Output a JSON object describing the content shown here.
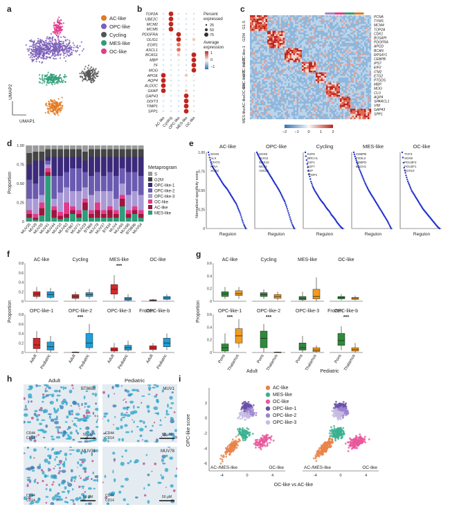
{
  "colors": {
    "ac": "#e07a23",
    "opc": "#7b5fb8",
    "cycling": "#555555",
    "mes": "#2e9e7a",
    "oc": "#e23a8b",
    "opc1": "#6a4fa8",
    "opc2": "#9c86cf",
    "opc3": "#c7bce3",
    "g2m": "#444444",
    "s": "#9a9a9a",
    "red": "#d62728",
    "blue": "#1f9fd6",
    "orange": "#f29b1d",
    "green": "#2e8b3a",
    "regulon": "#2233cc"
  },
  "panel_labels": [
    "a",
    "b",
    "c",
    "d",
    "e",
    "f",
    "g",
    "h",
    "i"
  ],
  "panel_a": {
    "legend": [
      {
        "label": "AC-like",
        "color": "#e07a23"
      },
      {
        "label": "OPC-like",
        "color": "#7b5fb8"
      },
      {
        "label": "Cycling",
        "color": "#555555"
      },
      {
        "label": "MES-like",
        "color": "#2e9e7a"
      },
      {
        "label": "OC-like",
        "color": "#e23a8b"
      }
    ],
    "axis_x": "UMAP1",
    "axis_y": "UMAP2"
  },
  "panel_b": {
    "genes": [
      "TOP2A",
      "UBE2C",
      "MCM2",
      "MCM5",
      "PDGFRA",
      "OLIG1",
      "EGR1",
      "ASCL1",
      "BCAS1",
      "MBP",
      "TF",
      "MOG",
      "APOE",
      "AQP4",
      "ALDOC",
      "GFAP",
      "GAP43",
      "DDIT3",
      "TIMP1",
      "SPP1"
    ],
    "groups": [
      "AC-like",
      "Cycling",
      "OPC-like",
      "MES-like",
      "OC-like"
    ],
    "legend_pct_title": "Percent expressed",
    "legend_pct": [
      "25",
      "50",
      "75"
    ],
    "legend_expr_title": "Average expression",
    "legend_expr": [
      "1",
      "0",
      "−1"
    ]
  },
  "panel_c": {
    "right_genes": [
      "PCNA",
      "TYMS",
      "MCM4",
      "TOP2A",
      "CDK1",
      "BUSAPI",
      "PDGFRA",
      "APOD",
      "BCAN",
      "RPS4Y1",
      "CEBPB",
      "IPS7",
      "EIF2",
      "ITM2",
      "ETG2",
      "PTGDS",
      "MBP",
      "MOG",
      "CLU",
      "AQP4",
      "SPARCL1",
      "VIM",
      "GAP43",
      "SPP1"
    ],
    "left_labels": [
      "G1.S",
      "G2M",
      "OPC-like-1",
      "OPC-like-2",
      "OPC-like-3",
      "OC-like",
      "AC-like",
      "MES-like"
    ],
    "colorbar": [
      "−2",
      "−1",
      "0",
      "1",
      "2"
    ]
  },
  "panel_d": {
    "ylabel": "Proportion",
    "yticks": [
      "0",
      "0.25",
      "0.50",
      "0.75",
      "1.00"
    ],
    "samples": [
      "MUV35",
      "MUV8",
      "MUV39",
      "MUV41",
      "MUV44",
      "MUV10",
      "MUV63",
      "BT867",
      "MUV71",
      "MUV29",
      "BT869",
      "MUV78",
      "MUV37",
      "BT834",
      "MUV4",
      "MUV65",
      "MUV86",
      "BT869b",
      "MUV54"
    ],
    "legend_title": "Metaprogram",
    "legend": [
      {
        "label": "S",
        "color": "#9a9a9a"
      },
      {
        "label": "G2M",
        "color": "#444444"
      },
      {
        "label": "OPC-like-1",
        "color": "#3b2a7a"
      },
      {
        "label": "OPC-like-2",
        "color": "#6a5ab0"
      },
      {
        "label": "OPC-like-3",
        "color": "#a99ad6"
      },
      {
        "label": "OC-like",
        "color": "#e23a8b"
      },
      {
        "label": "AC-like",
        "color": "#a0153e"
      },
      {
        "label": "MES-like",
        "color": "#2e9e7a"
      }
    ],
    "chart_data": {
      "type": "bar",
      "stacked": true,
      "series_order": [
        "MES-like",
        "AC-like",
        "OC-like",
        "OPC-like-3",
        "OPC-like-2",
        "OPC-like-1",
        "G2M",
        "S"
      ],
      "values": [
        [
          0.05,
          0.05,
          0.05,
          0.15,
          0.25,
          0.2,
          0.15,
          0.1
        ],
        [
          0.02,
          0.03,
          0.05,
          0.2,
          0.2,
          0.3,
          0.12,
          0.08
        ],
        [
          0.08,
          0.1,
          0.07,
          0.1,
          0.25,
          0.2,
          0.12,
          0.08
        ],
        [
          0.6,
          0.05,
          0.05,
          0.05,
          0.05,
          0.05,
          0.1,
          0.05
        ],
        [
          0.05,
          0.1,
          0.05,
          0.1,
          0.3,
          0.25,
          0.1,
          0.05
        ],
        [
          0.03,
          0.05,
          0.05,
          0.25,
          0.22,
          0.25,
          0.1,
          0.05
        ],
        [
          0.05,
          0.05,
          0.15,
          0.2,
          0.2,
          0.2,
          0.1,
          0.05
        ],
        [
          0.1,
          0.05,
          0.05,
          0.2,
          0.3,
          0.15,
          0.1,
          0.05
        ],
        [
          0.05,
          0.05,
          0.05,
          0.25,
          0.3,
          0.15,
          0.1,
          0.05
        ],
        [
          0.15,
          0.1,
          0.05,
          0.15,
          0.2,
          0.15,
          0.12,
          0.08
        ],
        [
          0.05,
          0.05,
          0.05,
          0.2,
          0.25,
          0.25,
          0.1,
          0.05
        ],
        [
          0.05,
          0.1,
          0.1,
          0.15,
          0.25,
          0.2,
          0.1,
          0.05
        ],
        [
          0.05,
          0.05,
          0.05,
          0.25,
          0.2,
          0.25,
          0.1,
          0.05
        ],
        [
          0.05,
          0.1,
          0.05,
          0.2,
          0.25,
          0.2,
          0.1,
          0.05
        ],
        [
          0.05,
          0.05,
          0.05,
          0.15,
          0.3,
          0.25,
          0.1,
          0.05
        ],
        [
          0.2,
          0.1,
          0.05,
          0.15,
          0.2,
          0.15,
          0.1,
          0.05
        ],
        [
          0.05,
          0.05,
          0.05,
          0.2,
          0.3,
          0.2,
          0.1,
          0.05
        ],
        [
          0.1,
          0.05,
          0.05,
          0.2,
          0.25,
          0.2,
          0.1,
          0.05
        ],
        [
          0.05,
          0.05,
          0.05,
          0.2,
          0.25,
          0.25,
          0.1,
          0.05
        ]
      ]
    }
  },
  "panel_e": {
    "ylabel": "Normalized specificity score",
    "xlabel": "Regulon",
    "subplots": [
      {
        "title": "AC-like",
        "labels": [
          "SOX9",
          "ALX",
          "STAT3",
          "NFIA",
          "SOX2"
        ]
      },
      {
        "title": "OPC-like",
        "labels": [
          "SOX8",
          "OLIG2",
          "SOX10",
          "NKX2",
          "ASCL1"
        ]
      },
      {
        "title": "Cycling",
        "labels": [
          "E2F8",
          "BRCA1",
          "E2F1",
          "E2F7",
          "E2F",
          "TFDP1"
        ]
      },
      {
        "title": "MES-like",
        "labels": [
          "CEBPB",
          "FOSL2",
          "CEBPD",
          "BACH1"
        ]
      },
      {
        "title": "OC-like",
        "labels": [
          "TCF3",
          "SOX8",
          "POU3F2",
          "POU2F1",
          "SOX10"
        ]
      }
    ],
    "chart_data": {
      "type": "scatter",
      "yrange": [
        0,
        1
      ],
      "curves": [
        {
          "title": "AC-like",
          "values": [
            1.0,
            0.9,
            0.82,
            0.78,
            0.74,
            0.7,
            0.66,
            0.62,
            0.58,
            0.55,
            0.52,
            0.48,
            0.44,
            0.4,
            0.36,
            0.32,
            0.26,
            0.2,
            0.12,
            0.05,
            0.0
          ]
        },
        {
          "title": "OPC-like",
          "values": [
            1.0,
            0.95,
            0.9,
            0.86,
            0.82,
            0.78,
            0.74,
            0.7,
            0.66,
            0.62,
            0.58,
            0.54,
            0.5,
            0.45,
            0.4,
            0.35,
            0.28,
            0.2,
            0.12,
            0.05,
            0.0
          ]
        },
        {
          "title": "Cycling",
          "values": [
            1.0,
            0.85,
            0.72,
            0.62,
            0.55,
            0.5,
            0.46,
            0.42,
            0.38,
            0.35,
            0.32,
            0.28,
            0.25,
            0.22,
            0.18,
            0.15,
            0.12,
            0.08,
            0.05,
            0.02,
            0.0
          ]
        },
        {
          "title": "MES-like",
          "values": [
            1.0,
            0.92,
            0.85,
            0.78,
            0.72,
            0.66,
            0.6,
            0.55,
            0.5,
            0.46,
            0.42,
            0.38,
            0.34,
            0.3,
            0.26,
            0.22,
            0.18,
            0.14,
            0.1,
            0.05,
            0.0
          ]
        },
        {
          "title": "OC-like",
          "values": [
            1.0,
            0.8,
            0.7,
            0.62,
            0.56,
            0.5,
            0.46,
            0.42,
            0.38,
            0.34,
            0.3,
            0.26,
            0.23,
            0.2,
            0.17,
            0.14,
            0.11,
            0.08,
            0.05,
            0.02,
            0.0
          ]
        }
      ]
    }
  },
  "panel_f": {
    "ylabel": "Proportion",
    "yticks": [
      "0",
      "0.2",
      "0.4",
      "0.6",
      "0.8"
    ],
    "xticks": [
      "Adult",
      "Pediatric"
    ],
    "facets": [
      {
        "title": "AC-like",
        "sig": "",
        "adult": [
          0.05,
          0.1,
          0.15,
          0.2,
          0.3
        ],
        "ped": [
          0.05,
          0.08,
          0.14,
          0.2,
          0.28
        ]
      },
      {
        "title": "Cycling",
        "sig": "",
        "adult": [
          0.02,
          0.06,
          0.1,
          0.14,
          0.2
        ],
        "ped": [
          0.05,
          0.1,
          0.14,
          0.18,
          0.26
        ]
      },
      {
        "title": "MES-like",
        "sig": "***",
        "adult": [
          0.05,
          0.15,
          0.25,
          0.35,
          0.55
        ],
        "ped": [
          0.0,
          0.02,
          0.05,
          0.08,
          0.15
        ]
      },
      {
        "title": "OC-like",
        "sig": "",
        "adult": [
          0.0,
          0.01,
          0.02,
          0.03,
          0.05
        ],
        "ped": [
          0.02,
          0.04,
          0.07,
          0.1,
          0.15
        ]
      },
      {
        "title": "OPC-like-1",
        "sig": "",
        "adult": [
          0.0,
          0.08,
          0.16,
          0.3,
          0.45
        ],
        "ped": [
          0.0,
          0.05,
          0.12,
          0.22,
          0.35
        ]
      },
      {
        "title": "OPC-like-2",
        "sig": "***",
        "adult": [
          0.0,
          0.0,
          0.0,
          0.01,
          0.02
        ],
        "ped": [
          0.05,
          0.1,
          0.2,
          0.4,
          0.6
        ]
      },
      {
        "title": "OPC-like-3",
        "sig": "",
        "adult": [
          0.0,
          0.03,
          0.06,
          0.1,
          0.2
        ],
        "ped": [
          0.02,
          0.05,
          0.1,
          0.15,
          0.25
        ]
      },
      {
        "title": "OPC-like-b",
        "sig": "",
        "adult": [
          0.02,
          0.06,
          0.1,
          0.14,
          0.2
        ],
        "ped": [
          0.05,
          0.12,
          0.2,
          0.3,
          0.4
        ]
      }
    ],
    "facet_labels_extra": [
      "Frozen"
    ]
  },
  "panel_g": {
    "ylabel": "Proportion",
    "yticks": [
      "0",
      "0.2",
      "0.4",
      "0.6"
    ],
    "xticks": [
      "Pons",
      "Thalamus"
    ],
    "group_labels": [
      "Adult",
      "Pediatric"
    ],
    "facets": [
      {
        "title": "AC-like",
        "sig": "",
        "a": [
          0.05,
          0.1,
          0.15,
          0.2,
          0.3
        ],
        "b": [
          0.05,
          0.12,
          0.16,
          0.22,
          0.3
        ]
      },
      {
        "title": "Cycling",
        "sig": "",
        "a": [
          0.05,
          0.1,
          0.14,
          0.18,
          0.25
        ],
        "b": [
          0.02,
          0.06,
          0.1,
          0.14,
          0.2
        ]
      },
      {
        "title": "MES-like",
        "sig": "",
        "a": [
          0.0,
          0.03,
          0.06,
          0.1,
          0.2
        ],
        "b": [
          0.0,
          0.05,
          0.1,
          0.25,
          0.5
        ]
      },
      {
        "title": "OC-like",
        "sig": "",
        "a": [
          0.02,
          0.05,
          0.08,
          0.1,
          0.15
        ],
        "b": [
          0.02,
          0.04,
          0.06,
          0.08,
          0.12
        ]
      },
      {
        "title": "OPC-like-1",
        "sig": "***",
        "a": [
          0.0,
          0.03,
          0.1,
          0.18,
          0.4
        ],
        "b": [
          0.1,
          0.2,
          0.35,
          0.5,
          0.7
        ]
      },
      {
        "title": "OPC-like-2",
        "sig": "***",
        "a": [
          0.0,
          0.1,
          0.3,
          0.45,
          0.6
        ],
        "b": [
          0.0,
          0.0,
          0.0,
          0.01,
          0.02
        ]
      },
      {
        "title": "OPC-like-3",
        "sig": "",
        "a": [
          0.0,
          0.05,
          0.1,
          0.2,
          0.35
        ],
        "b": [
          0.0,
          0.02,
          0.05,
          0.1,
          0.15
        ]
      },
      {
        "title": "OPC-like-b",
        "sig": "***",
        "a": [
          0.05,
          0.15,
          0.25,
          0.4,
          0.55
        ],
        "b": [
          0.0,
          0.03,
          0.06,
          0.1,
          0.2
        ]
      }
    ],
    "facet_labels_extra": [
      "Frozen"
    ]
  },
  "panel_h": {
    "col_titles": [
      "Adult",
      "Pediatric"
    ],
    "images": [
      {
        "id": "BT8698",
        "scale": "50 µM"
      },
      {
        "id": "MUV1",
        "scale": "50 µM"
      },
      {
        "id": "MUV31",
        "scale": "50 µM"
      },
      {
        "id": "MUV78",
        "scale": "50 µM"
      }
    ],
    "markers": [
      "CD44",
      "CD14"
    ]
  },
  "panel_i": {
    "legend": [
      {
        "label": "AC-like",
        "color": "#e8834a"
      },
      {
        "label": "MES-like",
        "color": "#3bb08f"
      },
      {
        "label": "OC-like",
        "color": "#e8589b"
      },
      {
        "label": "OPC-like-1",
        "color": "#6a4fa8"
      },
      {
        "label": "OPC-like-2",
        "color": "#9c86cf"
      },
      {
        "label": "OPC-like-3",
        "color": "#c7bce3"
      }
    ],
    "ylabel": "OPC-like score",
    "xlabel": "OC-like vs AC-like",
    "corner_labels": [
      "AC-/MES-like",
      "OC-like"
    ],
    "yticks": [
      "-6",
      "-4",
      "-2",
      "0",
      "2"
    ],
    "xticks": [
      "-4",
      "0",
      "4"
    ]
  }
}
